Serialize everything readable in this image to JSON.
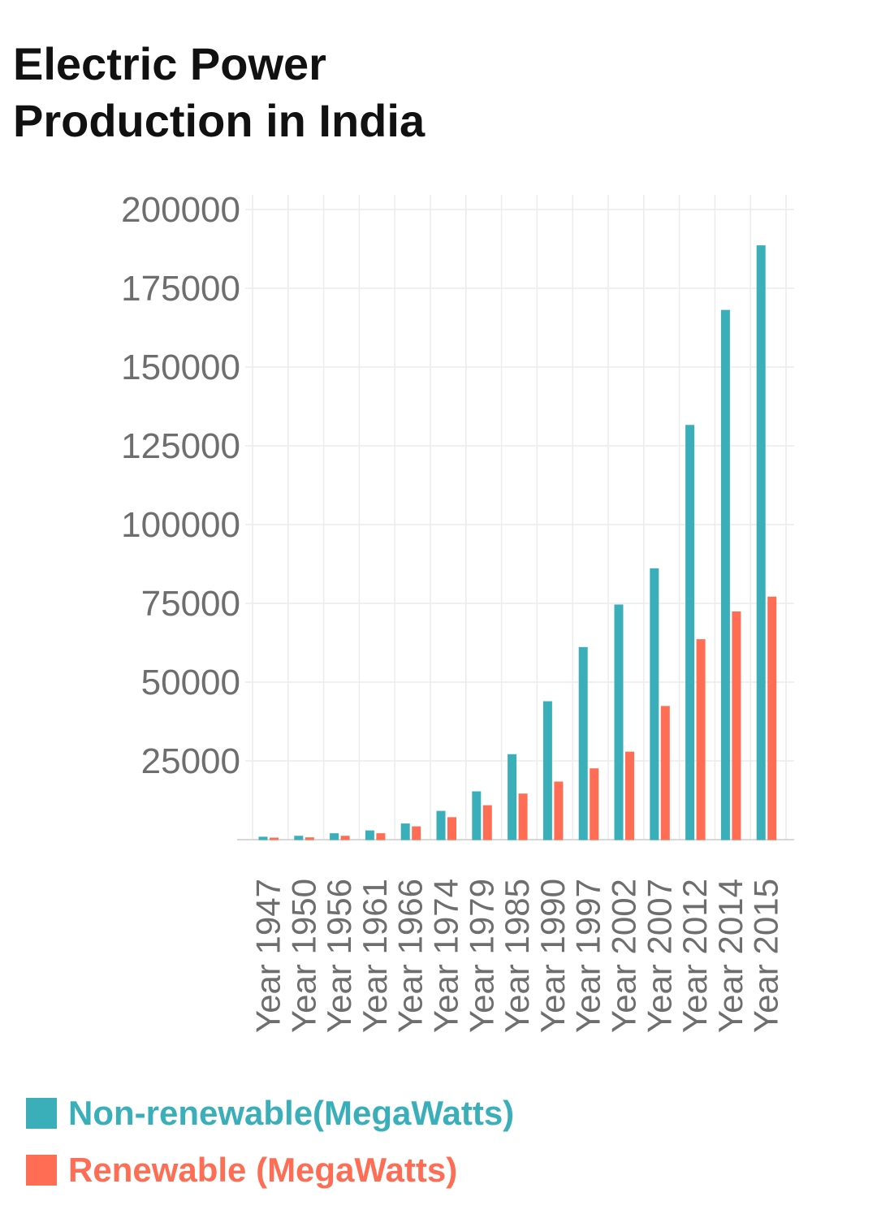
{
  "page": {
    "title": "Electric Power Production in India"
  },
  "chart_data": {
    "type": "bar",
    "title": "Electric Power Production in India",
    "xlabel": "",
    "ylabel": "",
    "categories": [
      "Year 1947",
      "Year 1950",
      "Year 1956",
      "Year 1961",
      "Year 1966",
      "Year 1974",
      "Year 1979",
      "Year 1985",
      "Year 1990",
      "Year 1997",
      "Year 2002",
      "Year 2007",
      "Year 2012",
      "Year 2014",
      "Year 2015"
    ],
    "series": [
      {
        "name": "Non-renewable(MegaWatts)",
        "color": "#3aafba",
        "values": [
          800,
          1100,
          1900,
          2800,
          5000,
          9000,
          15200,
          27000,
          43800,
          61000,
          74500,
          86000,
          131500,
          168000,
          188500
        ]
      },
      {
        "name": "Renewable (MegaWatts)",
        "color": "#ff6e54",
        "values": [
          500,
          600,
          1100,
          1900,
          4100,
          7000,
          10800,
          14500,
          18300,
          22500,
          27800,
          42300,
          63500,
          72300,
          77000
        ]
      }
    ],
    "ylim": [
      0,
      200000
    ],
    "yticks": [
      25000,
      50000,
      75000,
      100000,
      125000,
      150000,
      175000,
      200000
    ],
    "grid": true,
    "legend_position": "bottom-left",
    "text_color": "#6e6e6e",
    "grid_color": "#ececec"
  }
}
